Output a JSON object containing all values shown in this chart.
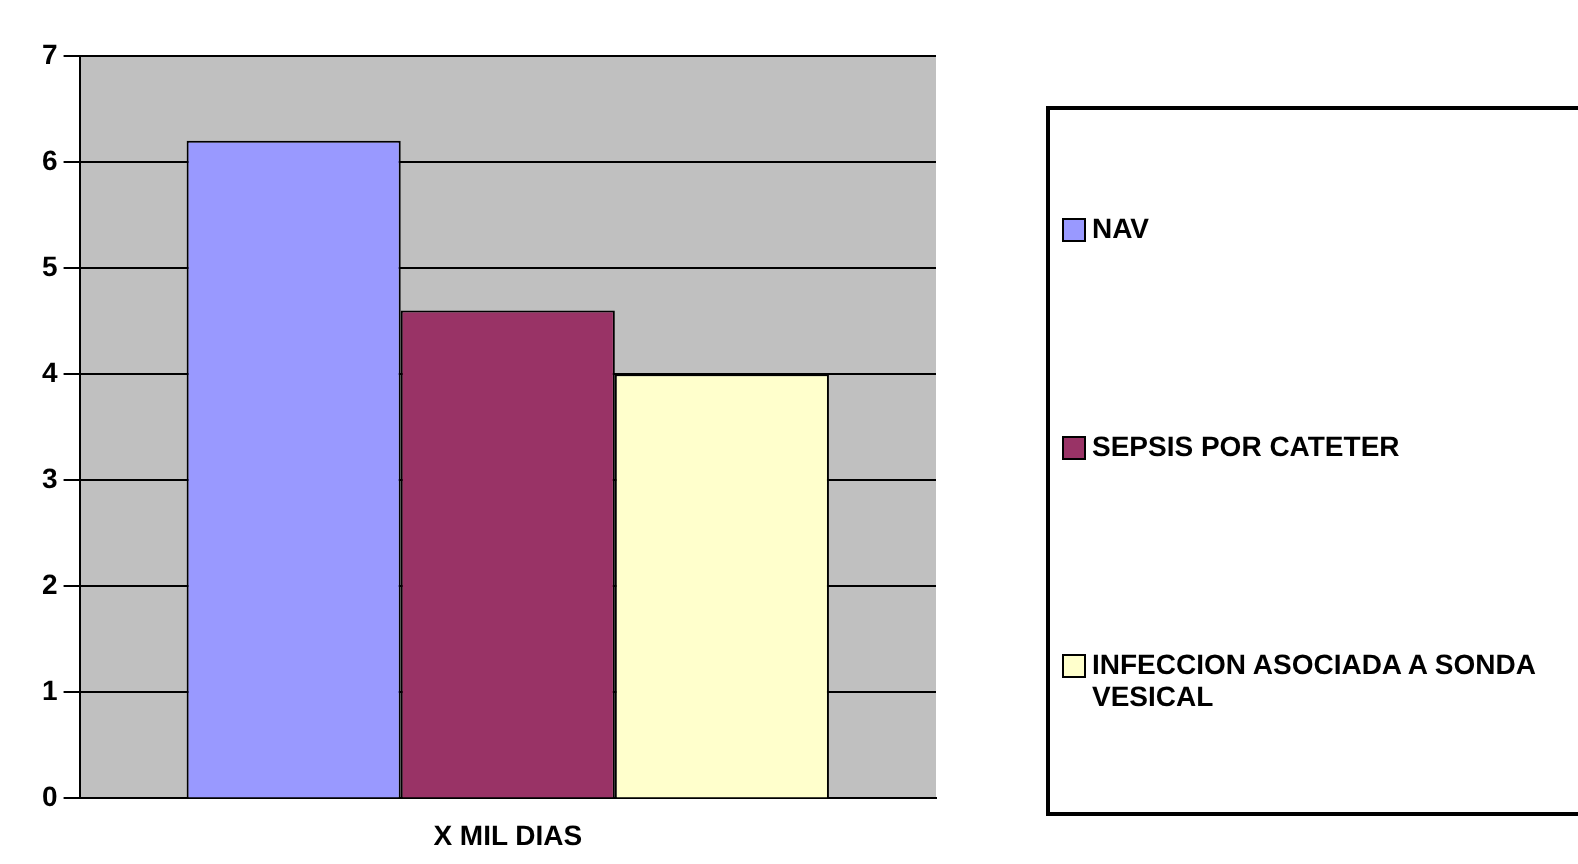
{
  "chart_data": {
    "type": "bar",
    "categories": [
      "X MIL DIAS"
    ],
    "series": [
      {
        "name": "NAV",
        "color": "#9999ff",
        "values": [
          6.2
        ]
      },
      {
        "name": "SEPSIS POR CATETER",
        "color": "#993366",
        "values": [
          4.6
        ]
      },
      {
        "name": "INFECCION ASOCIADA A SONDA VESICAL",
        "color": "#ffffcc",
        "values": [
          4.0
        ]
      }
    ],
    "ylim": [
      0,
      7
    ],
    "yticks": [
      0,
      1,
      2,
      3,
      4,
      5,
      6,
      7
    ],
    "grid": "y",
    "legend": "right"
  }
}
